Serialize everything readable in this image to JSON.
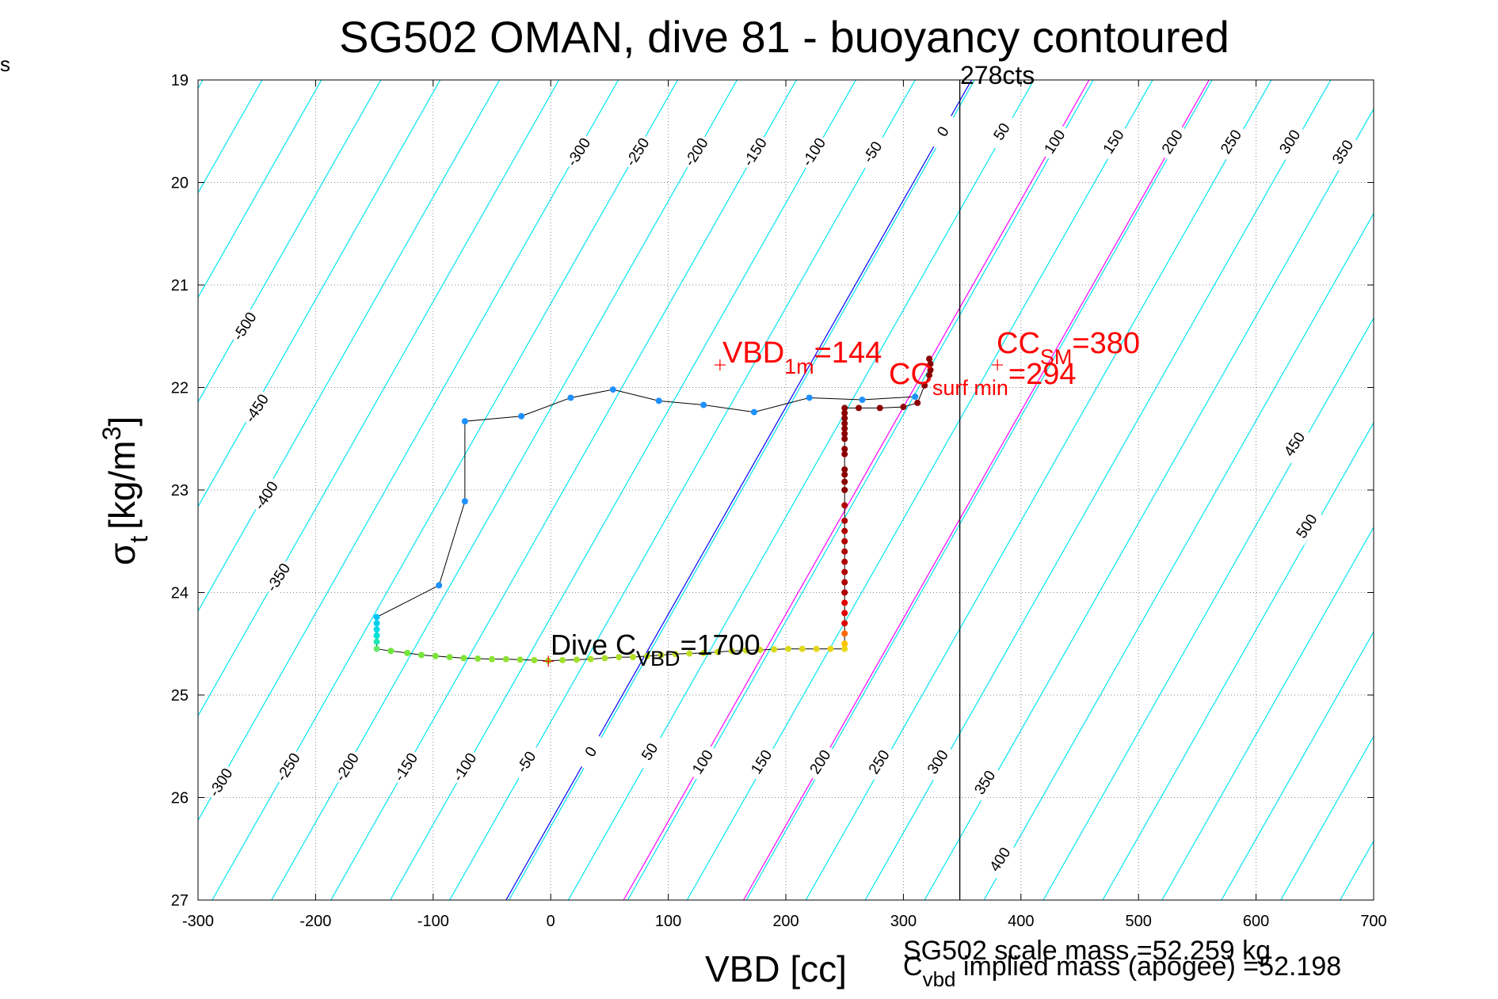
{
  "corner_text": "s",
  "chart_data": {
    "type": "scatter",
    "title": "SG502 OMAN, dive 81 - buoyancy contoured",
    "xlabel": "VBD [cc]",
    "ylabel_main": "σ",
    "ylabel_sub": "t",
    "ylabel_unit": "[kg/m",
    "ylabel_sup": "3",
    "ylabel_end": "]",
    "xlim": [
      -300,
      700
    ],
    "ylim": [
      19,
      27
    ],
    "y_reversed": true,
    "grid": true,
    "x_ticks": [
      -300,
      -200,
      -100,
      0,
      100,
      200,
      300,
      400,
      500,
      600,
      700
    ],
    "y_ticks": [
      19,
      20,
      21,
      22,
      23,
      24,
      25,
      26,
      27
    ],
    "contour_slope_cc_per_sigma": 152,
    "contours_top": [
      {
        "label": "-300",
        "vbd_at_sigma": -300,
        "sigma": 19.7
      },
      {
        "label": "-250",
        "vbd_at_sigma": -250,
        "sigma": 19.7
      },
      {
        "label": "-200",
        "vbd_at_sigma": -200,
        "sigma": 19.7
      },
      {
        "label": "-150",
        "vbd_at_sigma": -150,
        "sigma": 19.7
      },
      {
        "label": "-100",
        "vbd_at_sigma": -100,
        "sigma": 19.7
      },
      {
        "label": "-50",
        "vbd_at_sigma": -50,
        "sigma": 19.7
      },
      {
        "label": "0",
        "vbd_at_sigma": 0,
        "sigma": 19.5
      },
      {
        "label": "50",
        "vbd_at_sigma": 50,
        "sigma": 19.5
      },
      {
        "label": "100",
        "vbd_at_sigma": 100,
        "sigma": 19.6
      },
      {
        "label": "150",
        "vbd_at_sigma": 150,
        "sigma": 19.6
      },
      {
        "label": "200",
        "vbd_at_sigma": 200,
        "sigma": 19.6
      },
      {
        "label": "250",
        "vbd_at_sigma": 250,
        "sigma": 19.6
      },
      {
        "label": "300",
        "vbd_at_sigma": 300,
        "sigma": 19.6
      },
      {
        "label": "350",
        "vbd_at_sigma": 350,
        "sigma": 19.7
      }
    ],
    "contours_left": [
      {
        "label": "-500",
        "sigma": 21.4
      },
      {
        "label": "-450",
        "sigma": 22.2
      },
      {
        "label": "-400",
        "sigma": 23.05
      },
      {
        "label": "-350",
        "sigma": 23.85
      }
    ],
    "contours_right": [
      {
        "label": "450",
        "sigma": 22.55
      },
      {
        "label": "500",
        "sigma": 23.35
      }
    ],
    "contours_bottom": [
      {
        "label": "-300",
        "sigma": 25.85
      },
      {
        "label": "-250",
        "sigma": 25.7
      },
      {
        "label": "-200",
        "sigma": 25.7
      },
      {
        "label": "-150",
        "sigma": 25.7
      },
      {
        "label": "-100",
        "sigma": 25.7
      },
      {
        "label": "-50",
        "sigma": 25.65
      },
      {
        "label": "0",
        "sigma": 25.55
      },
      {
        "label": "50",
        "sigma": 25.55
      },
      {
        "label": "100",
        "sigma": 25.65
      },
      {
        "label": "150",
        "sigma": 25.65
      },
      {
        "label": "200",
        "sigma": 25.65
      },
      {
        "label": "250",
        "sigma": 25.65
      },
      {
        "label": "300",
        "sigma": 25.65
      },
      {
        "label": "350",
        "sigma": 25.85
      },
      {
        "label": "400",
        "sigma": 26.6
      }
    ],
    "neutral_line": {
      "label": "0",
      "vbd_at_27": -38,
      "vbd_at_19": 358,
      "color": "#0000ff"
    },
    "magenta_lines": [
      {
        "vbd_at_27": 62,
        "vbd_at_19": 458,
        "color": "#ff00ff"
      },
      {
        "vbd_at_27": 164,
        "vbd_at_19": 560,
        "color": "#ff00ff"
      }
    ],
    "vertical_line": {
      "vbd": 348,
      "label": "278cts"
    },
    "annotations": {
      "vbd_1m": {
        "main": "VBD",
        "sub": "1m",
        "value": "=144",
        "marker_vbd": 144,
        "marker_sigma": 21.78
      },
      "cc_sm": {
        "main": "CC",
        "sub": "SM",
        "value": "=380",
        "marker_vbd": 380,
        "marker_sigma": 21.78
      },
      "cc_surf_min": {
        "main": "CC",
        "sub": "surf min",
        "value": "=294"
      },
      "dive_c_vbd": {
        "main": "Dive C",
        "sub": "VBD",
        "value": "=1700",
        "marker_vbd": -2,
        "marker_sigma": 24.67
      },
      "scale_mass": "SG502 scale mass =52.259 kg",
      "implied_mass_main": "C",
      "implied_mass_sub": "vbd",
      "implied_mass_rest": " implied mass (apogee) =52.198"
    },
    "colors": {
      "contour": "#00e5ee",
      "grid": "#888888",
      "ascent": "#8b0000",
      "descent_top": "#1e90ff",
      "path_line": "#000000",
      "annotation": "#ff0000"
    },
    "series": [
      {
        "name": "descent",
        "points": [
          [
            310,
            22.09
          ],
          [
            265,
            22.12
          ],
          [
            220,
            22.1
          ],
          [
            173,
            22.24
          ],
          [
            130,
            22.17
          ],
          [
            92,
            22.13
          ],
          [
            53,
            22.02
          ],
          [
            17,
            22.1
          ],
          [
            -25,
            22.28
          ],
          [
            -73,
            22.33
          ],
          [
            -73,
            23.11
          ],
          [
            -95,
            23.93
          ],
          [
            -148,
            24.24
          ],
          [
            -148,
            24.3
          ],
          [
            -148,
            24.36
          ],
          [
            -148,
            24.42
          ],
          [
            -148,
            24.48
          ],
          [
            -148,
            24.55
          ],
          [
            -136,
            24.57
          ],
          [
            -122,
            24.59
          ],
          [
            -110,
            24.61
          ],
          [
            -98,
            24.62
          ],
          [
            -86,
            24.63
          ],
          [
            -74,
            24.64
          ],
          [
            -62,
            24.645
          ],
          [
            -50,
            24.65
          ],
          [
            -38,
            24.65
          ],
          [
            -26,
            24.655
          ],
          [
            -14,
            24.66
          ],
          [
            -2,
            24.665
          ],
          [
            10,
            24.66
          ],
          [
            22,
            24.655
          ],
          [
            34,
            24.65
          ],
          [
            46,
            24.64
          ],
          [
            58,
            24.63
          ],
          [
            70,
            24.63
          ],
          [
            82,
            24.62
          ],
          [
            94,
            24.61
          ],
          [
            106,
            24.6
          ],
          [
            118,
            24.595
          ],
          [
            130,
            24.59
          ],
          [
            142,
            24.58
          ],
          [
            154,
            24.57
          ],
          [
            166,
            24.565
          ],
          [
            178,
            24.56
          ],
          [
            190,
            24.555
          ],
          [
            202,
            24.55
          ],
          [
            214,
            24.55
          ],
          [
            226,
            24.55
          ],
          [
            238,
            24.55
          ],
          [
            250,
            24.55
          ]
        ]
      },
      {
        "name": "ascent",
        "points": [
          [
            250,
            24.5
          ],
          [
            250,
            24.4
          ],
          [
            250,
            24.3
          ],
          [
            250,
            24.2
          ],
          [
            250,
            24.1
          ],
          [
            250,
            24.0
          ],
          [
            250,
            23.9
          ],
          [
            250,
            23.8
          ],
          [
            250,
            23.7
          ],
          [
            250,
            23.6
          ],
          [
            250,
            23.5
          ],
          [
            250,
            23.4
          ],
          [
            250,
            23.3
          ],
          [
            250,
            23.15
          ],
          [
            250,
            23.0
          ],
          [
            250,
            22.92
          ],
          [
            250,
            22.85
          ],
          [
            250,
            22.8
          ],
          [
            250,
            22.65
          ],
          [
            250,
            22.6
          ],
          [
            250,
            22.5
          ],
          [
            250,
            22.45
          ],
          [
            250,
            22.4
          ],
          [
            250,
            22.35
          ],
          [
            250,
            22.3
          ],
          [
            250,
            22.25
          ],
          [
            250,
            22.2
          ],
          [
            262,
            22.2
          ],
          [
            280,
            22.2
          ],
          [
            300,
            22.19
          ],
          [
            312,
            22.15
          ],
          [
            318,
            21.98
          ],
          [
            322,
            21.88
          ],
          [
            323,
            21.83
          ],
          [
            323,
            21.77
          ],
          [
            322,
            21.72
          ]
        ]
      }
    ]
  }
}
